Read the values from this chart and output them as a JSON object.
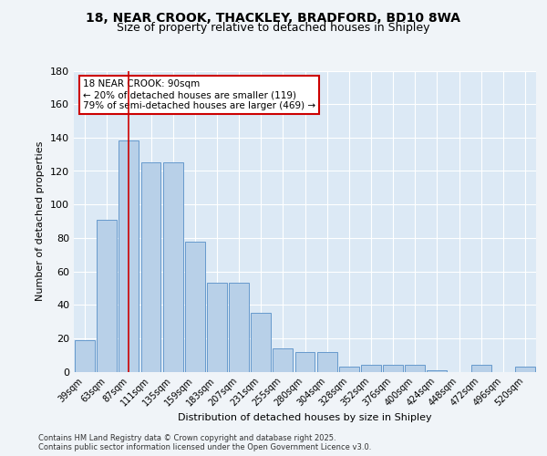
{
  "title_line1": "18, NEAR CROOK, THACKLEY, BRADFORD, BD10 8WA",
  "title_line2": "Size of property relative to detached houses in Shipley",
  "xlabel": "Distribution of detached houses by size in Shipley",
  "ylabel": "Number of detached properties",
  "categories": [
    "39sqm",
    "63sqm",
    "87sqm",
    "111sqm",
    "135sqm",
    "159sqm",
    "183sqm",
    "207sqm",
    "231sqm",
    "255sqm",
    "280sqm",
    "304sqm",
    "328sqm",
    "352sqm",
    "376sqm",
    "400sqm",
    "424sqm",
    "448sqm",
    "472sqm",
    "496sqm",
    "520sqm"
  ],
  "values": [
    19,
    91,
    138,
    125,
    125,
    78,
    53,
    53,
    35,
    14,
    12,
    12,
    3,
    4,
    4,
    4,
    1,
    0,
    4,
    0,
    3
  ],
  "bar_color": "#b8d0e8",
  "bar_edge_color": "#6699cc",
  "background_color": "#dce9f5",
  "grid_color": "#ffffff",
  "vline_color": "#cc0000",
  "annotation_title": "18 NEAR CROOK: 90sqm",
  "annotation_line1": "← 20% of detached houses are smaller (119)",
  "annotation_line2": "79% of semi-detached houses are larger (469) →",
  "annotation_box_color": "#ffffff",
  "annotation_box_edge": "#cc0000",
  "ylim": [
    0,
    180
  ],
  "yticks": [
    0,
    20,
    40,
    60,
    80,
    100,
    120,
    140,
    160,
    180
  ],
  "footer_line1": "Contains HM Land Registry data © Crown copyright and database right 2025.",
  "footer_line2": "Contains public sector information licensed under the Open Government Licence v3.0.",
  "fig_bg": "#f0f4f8"
}
